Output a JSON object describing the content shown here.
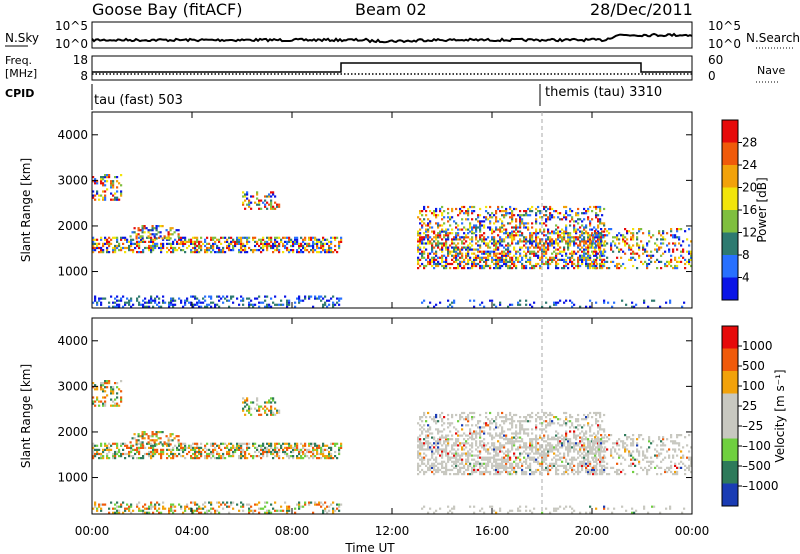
{
  "header": {
    "station": "Goose Bay (fitACF)",
    "beam": "Beam 02",
    "date": "28/Dec/2011"
  },
  "panels": {
    "nsky": {
      "label": "N.Sky",
      "ticks_left": [
        "10^5",
        "10^0"
      ],
      "right_label": "N.Search",
      "ticks_right": [
        "10^5",
        "10^0"
      ]
    },
    "freq": {
      "label_line1": "Freq.",
      "label_line2": "[MHz]",
      "ticks_left": [
        "18",
        "8"
      ],
      "right_label": "Nave",
      "ticks_right": [
        "60",
        "0"
      ]
    },
    "cpid": {
      "label": "CPID",
      "modes": [
        "tau (fast) 503",
        "themis (tau) 3310"
      ]
    }
  },
  "chart_data": [
    {
      "type": "heatmap",
      "name": "power",
      "ylabel": "Slant Range [km]",
      "yticks": [
        "4000",
        "3000",
        "2000",
        "1000"
      ],
      "ylim": [
        200,
        4500
      ],
      "colorbar": {
        "label": "Power [dB]",
        "ticks": [
          "28",
          "24",
          "20",
          "16",
          "12",
          "8",
          "4"
        ],
        "range": [
          0,
          30
        ],
        "colors": [
          "#0a14e6",
          "#2870ff",
          "#2e7a70",
          "#7fbf3f",
          "#f2e50a",
          "#f2a20a",
          "#f05a0a",
          "#e60a0a"
        ]
      }
    },
    {
      "type": "heatmap",
      "name": "velocity",
      "ylabel": "Slant Range [km]",
      "yticks": [
        "4000",
        "3000",
        "2000",
        "1000"
      ],
      "ylim": [
        200,
        4500
      ],
      "colorbar": {
        "label": "Velocity [m s⁻¹]",
        "ticks": [
          "1000",
          "500",
          "100",
          "25",
          "–25",
          "–100",
          "–500",
          "–1000"
        ],
        "colors": [
          "#1a3cb4",
          "#2e7a5a",
          "#6fcf3f",
          "#c8c8c0",
          "#c8c8c0",
          "#f2a20a",
          "#f05a0a",
          "#e60a0a"
        ]
      }
    }
  ],
  "x_axis": {
    "label": "Time UT",
    "ticks": [
      "00:00",
      "04:00",
      "08:00",
      "12:00",
      "16:00",
      "20:00",
      "00:00"
    ]
  }
}
